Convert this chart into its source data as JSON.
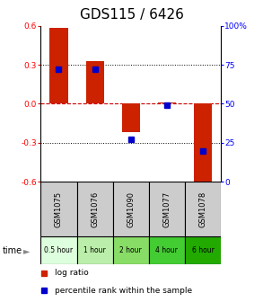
{
  "title": "GDS115 / 6426",
  "samples": [
    "GSM1075",
    "GSM1076",
    "GSM1090",
    "GSM1077",
    "GSM1078"
  ],
  "time_labels": [
    "0.5 hour",
    "1 hour",
    "2 hour",
    "4 hour",
    "6 hour"
  ],
  "log_ratios": [
    0.58,
    0.33,
    -0.22,
    0.01,
    -0.65
  ],
  "percentile_ranks": [
    72,
    72,
    27,
    49,
    20
  ],
  "ylim": [
    -0.6,
    0.6
  ],
  "yticks_left": [
    -0.6,
    -0.3,
    0.0,
    0.3,
    0.6
  ],
  "yticks_right": [
    0,
    25,
    50,
    75,
    100
  ],
  "bar_color": "#cc2200",
  "marker_color": "#0000cc",
  "title_fontsize": 11,
  "bar_width": 0.5,
  "time_colors": [
    "#ddffdd",
    "#bbeeaa",
    "#88dd66",
    "#55cc33",
    "#22aa00"
  ],
  "sample_color": "#cccccc",
  "background_color": "#ffffff",
  "hline_color": "#cc0000"
}
